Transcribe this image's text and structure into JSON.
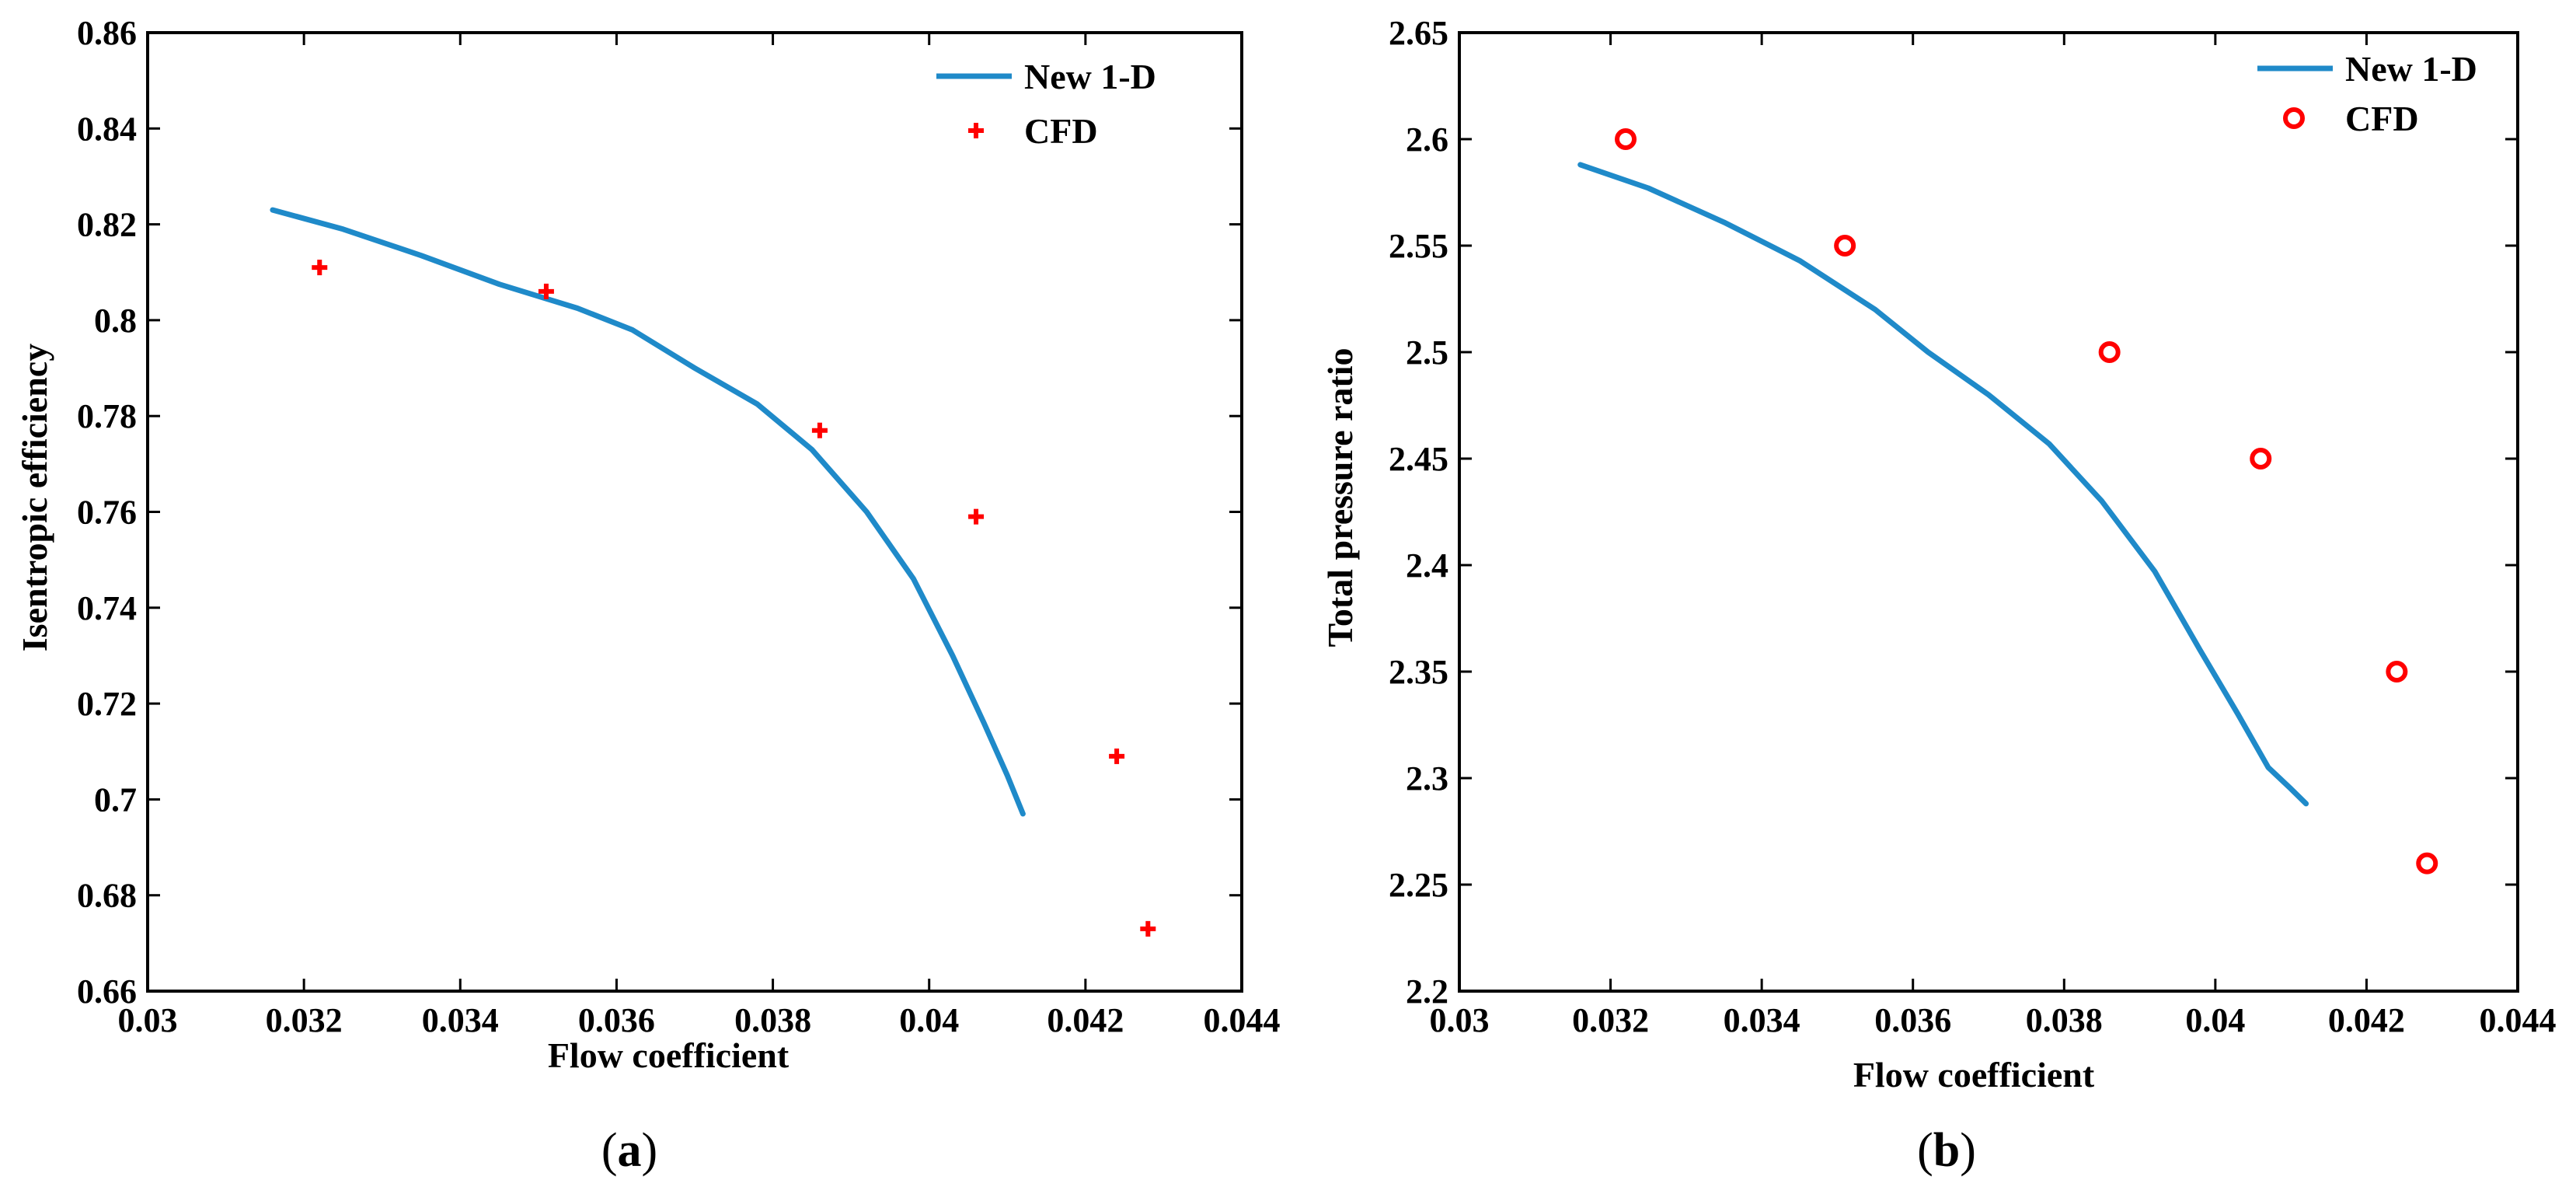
{
  "colors": {
    "model_line": "#1f8ac9",
    "cfd_marker": "#ff0000",
    "axis": "#000000"
  },
  "chart_data": [
    {
      "type": "line+scatter",
      "panel_label": "a",
      "title": "",
      "xlabel": "Flow coefficient",
      "ylabel": "Isentropic efficiency",
      "xlim": [
        0.03,
        0.044
      ],
      "ylim": [
        0.66,
        0.86
      ],
      "xticks": [
        0.03,
        0.032,
        0.034,
        0.036,
        0.038,
        0.04,
        0.042,
        0.044
      ],
      "xtick_labels": [
        "0.03",
        "0.032",
        "0.034",
        "0.036",
        "0.038",
        "0.04",
        "0.042",
        "0.044"
      ],
      "yticks": [
        0.66,
        0.68,
        0.7,
        0.72,
        0.74,
        0.76,
        0.78,
        0.8,
        0.82,
        0.84,
        0.86
      ],
      "ytick_labels": [
        "0.66",
        "0.68",
        "0.7",
        "0.72",
        "0.74",
        "0.76",
        "0.78",
        "0.8",
        "0.82",
        "0.84",
        "0.86"
      ],
      "legend_position": "top-right",
      "series": [
        {
          "name": "New 1-D",
          "kind": "line",
          "x": [
            0.0316,
            0.0325,
            0.0335,
            0.0345,
            0.0355,
            0.0362,
            0.037,
            0.0378,
            0.0385,
            0.0392,
            0.0398,
            0.0403,
            0.0407,
            0.041,
            0.0412
          ],
          "y": [
            0.823,
            0.819,
            0.8135,
            0.8075,
            0.8025,
            0.798,
            0.79,
            0.7825,
            0.773,
            0.76,
            0.746,
            0.73,
            0.716,
            0.705,
            0.697
          ]
        },
        {
          "name": "CFD",
          "kind": "scatter",
          "marker": "plus",
          "x": [
            0.0322,
            0.0351,
            0.0386,
            0.0406,
            0.0424,
            0.0428
          ],
          "y": [
            0.811,
            0.806,
            0.777,
            0.759,
            0.709,
            0.673
          ]
        }
      ]
    },
    {
      "type": "line+scatter",
      "panel_label": "b",
      "title": "",
      "xlabel": "Flow coefficient",
      "ylabel": "Total pressure ratio",
      "xlim": [
        0.03,
        0.044
      ],
      "ylim": [
        2.2,
        2.65
      ],
      "xticks": [
        0.03,
        0.032,
        0.034,
        0.036,
        0.038,
        0.04,
        0.042,
        0.044
      ],
      "xtick_labels": [
        "0.03",
        "0.032",
        "0.034",
        "0.036",
        "0.038",
        "0.04",
        "0.042",
        "0.044"
      ],
      "yticks": [
        2.2,
        2.25,
        2.3,
        2.35,
        2.4,
        2.45,
        2.5,
        2.55,
        2.6,
        2.65
      ],
      "ytick_labels": [
        "2.2",
        "2.25",
        "2.3",
        "2.35",
        "2.4",
        "2.45",
        "2.5",
        "2.55",
        "2.6",
        "2.65"
      ],
      "legend_position": "top-right",
      "series": [
        {
          "name": "New 1-D",
          "kind": "line",
          "x": [
            0.0316,
            0.0325,
            0.0335,
            0.0345,
            0.0355,
            0.0362,
            0.037,
            0.0378,
            0.0385,
            0.0392,
            0.0398,
            0.0403,
            0.0407,
            0.041,
            0.0412
          ],
          "y": [
            2.588,
            2.577,
            2.561,
            2.543,
            2.52,
            2.5,
            2.48,
            2.457,
            2.43,
            2.397,
            2.36,
            2.33,
            2.305,
            2.295,
            2.288
          ]
        },
        {
          "name": "CFD",
          "kind": "scatter",
          "marker": "circle",
          "x": [
            0.0322,
            0.0351,
            0.0386,
            0.0406,
            0.0424,
            0.0428
          ],
          "y": [
            2.6,
            2.55,
            2.5,
            2.45,
            2.35,
            2.26
          ]
        }
      ]
    }
  ]
}
